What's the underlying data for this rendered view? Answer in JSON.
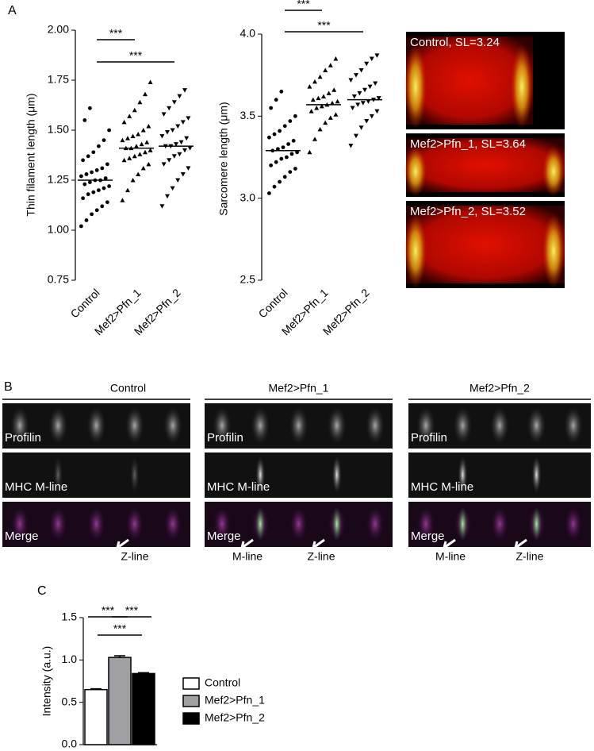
{
  "panel_a": {
    "label": "A",
    "images": [
      "Control, SL=3.24",
      "Mef2>Pfn_1, SL=3.64",
      "Mef2>Pfn_2, SL=3.52"
    ]
  },
  "panel_b": {
    "label": "B",
    "columns": [
      {
        "title": "Control",
        "rows": [
          "Profilin",
          "MHC M-line",
          "Merge"
        ],
        "arrows": [
          "Z-line"
        ]
      },
      {
        "title": "Mef2>Pfn_1",
        "rows": [
          "Profilin",
          "MHC M-line",
          "Merge"
        ],
        "arrows": [
          "M-line",
          "Z-line"
        ]
      },
      {
        "title": "Mef2>Pfn_2",
        "rows": [
          "Profilin",
          "MHC M-line",
          "Merge"
        ],
        "arrows": [
          "M-line",
          "Z-line"
        ]
      }
    ]
  },
  "panel_c": {
    "label": "C"
  },
  "chart_data": [
    {
      "type": "dot",
      "ylabel": "Thin filament length (μm)",
      "categories": [
        "Control",
        "Mef2>Pfn_1",
        "Mef2>Pfn_2"
      ],
      "markers": [
        "circle",
        "triangle-up",
        "triangle-down"
      ],
      "color": "#000000",
      "values": [
        [
          1.02,
          1.05,
          1.08,
          1.1,
          1.12,
          1.14,
          1.16,
          1.18,
          1.19,
          1.2,
          1.21,
          1.22,
          1.23,
          1.24,
          1.25,
          1.25,
          1.26,
          1.27,
          1.28,
          1.29,
          1.3,
          1.31,
          1.33,
          1.35,
          1.37,
          1.39,
          1.42,
          1.45,
          1.5,
          1.55,
          1.61
        ],
        [
          1.15,
          1.2,
          1.25,
          1.28,
          1.31,
          1.33,
          1.35,
          1.36,
          1.37,
          1.38,
          1.39,
          1.4,
          1.41,
          1.41,
          1.42,
          1.43,
          1.44,
          1.45,
          1.46,
          1.47,
          1.48,
          1.5,
          1.52,
          1.54,
          1.57,
          1.6,
          1.64,
          1.68,
          1.74
        ],
        [
          1.12,
          1.17,
          1.21,
          1.25,
          1.28,
          1.31,
          1.33,
          1.35,
          1.37,
          1.38,
          1.4,
          1.41,
          1.42,
          1.42,
          1.43,
          1.44,
          1.46,
          1.47,
          1.49,
          1.5,
          1.52,
          1.54,
          1.56,
          1.58,
          1.61,
          1.64,
          1.67,
          1.7
        ]
      ],
      "means": [
        1.25,
        1.41,
        1.42
      ],
      "annotations": [
        {
          "text": "***",
          "pair": [
            0,
            1
          ]
        },
        {
          "text": "***",
          "pair": [
            0,
            2
          ]
        }
      ],
      "ylim": [
        0.75,
        2.0
      ],
      "yticks": [
        {
          "value": 0.75,
          "label": "0.75"
        },
        {
          "value": 1.0,
          "label": "1.00"
        },
        {
          "value": 1.25,
          "label": "1.25"
        },
        {
          "value": 1.5,
          "label": "1.50"
        },
        {
          "value": 1.75,
          "label": "1.75"
        },
        {
          "value": 2.0,
          "label": "2.00"
        }
      ]
    },
    {
      "type": "dot",
      "ylabel": "Sarcomere length (μm)",
      "categories": [
        "Control",
        "Mef2>Pfn_1",
        "Mef2>Pfn_2"
      ],
      "markers": [
        "circle",
        "triangle-up",
        "triangle-down"
      ],
      "color": "#000000",
      "values": [
        [
          3.03,
          3.07,
          3.1,
          3.13,
          3.16,
          3.18,
          3.2,
          3.22,
          3.24,
          3.25,
          3.27,
          3.28,
          3.29,
          3.3,
          3.31,
          3.33,
          3.35,
          3.37,
          3.39,
          3.41,
          3.44,
          3.47,
          3.5,
          3.55,
          3.6,
          3.65
        ],
        [
          3.28,
          3.36,
          3.42,
          3.46,
          3.49,
          3.51,
          3.53,
          3.55,
          3.56,
          3.57,
          3.58,
          3.59,
          3.6,
          3.61,
          3.62,
          3.64,
          3.66,
          3.68,
          3.71,
          3.74,
          3.78,
          3.81,
          3.85
        ],
        [
          3.32,
          3.38,
          3.43,
          3.47,
          3.5,
          3.53,
          3.55,
          3.57,
          3.58,
          3.59,
          3.6,
          3.61,
          3.62,
          3.64,
          3.66,
          3.68,
          3.7,
          3.72,
          3.75,
          3.78,
          3.82,
          3.85,
          3.87
        ]
      ],
      "means": [
        3.29,
        3.57,
        3.6
      ],
      "annotations": [
        {
          "text": "***",
          "pair": [
            0,
            1
          ]
        },
        {
          "text": "***",
          "pair": [
            0,
            2
          ]
        }
      ],
      "ylim": [
        2.5,
        4.0
      ],
      "yticks": [
        {
          "value": 2.5,
          "label": "2.5"
        },
        {
          "value": 3.0,
          "label": "3.0"
        },
        {
          "value": 3.5,
          "label": "3.5"
        },
        {
          "value": 4.0,
          "label": "4.0"
        }
      ]
    },
    {
      "type": "bar",
      "ylabel": "Intensity (a.u.)",
      "categories": [
        "Control",
        "Mef2>Pfn_1",
        "Mef2>Pfn_2"
      ],
      "colors": [
        "#ffffff",
        "#a0a0a4",
        "#000000"
      ],
      "values": [
        0.65,
        1.03,
        0.84
      ],
      "errors": [
        0.01,
        0.02,
        0.01
      ],
      "annotations": [
        {
          "text": "***",
          "pair": [
            0,
            1
          ]
        },
        {
          "text": "***",
          "pair": [
            1,
            2
          ]
        },
        {
          "text": "***",
          "pair": [
            0,
            2
          ]
        }
      ],
      "ylim": [
        0,
        1.5
      ],
      "yticks": [
        {
          "value": 0,
          "label": "0.0"
        },
        {
          "value": 0.5,
          "label": "0.5"
        },
        {
          "value": 1.0,
          "label": "1.0"
        },
        {
          "value": 1.5,
          "label": "1.5"
        }
      ]
    }
  ]
}
